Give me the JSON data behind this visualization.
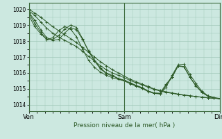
{
  "bg_color": "#cce8e0",
  "grid_color": "#a0c8b8",
  "line_color": "#2d5a27",
  "marker_color": "#2d5a27",
  "xlabel": "Pression niveau de la mer( hPa )",
  "yticks": [
    1014,
    1015,
    1016,
    1017,
    1018,
    1019,
    1020
  ],
  "xtick_labels": [
    "Ven",
    "Sam",
    "Dim"
  ],
  "xtick_positions": [
    0,
    48,
    96
  ],
  "ylim": [
    1013.6,
    1020.4
  ],
  "xlim": [
    0,
    96
  ],
  "series": [
    [
      0,
      1020.0,
      3,
      1019.75,
      6,
      1019.5,
      9,
      1019.2,
      12,
      1018.9,
      15,
      1018.65,
      18,
      1018.4,
      21,
      1018.15,
      24,
      1017.9,
      27,
      1017.6,
      30,
      1017.3,
      33,
      1017.0,
      36,
      1016.7,
      39,
      1016.45,
      42,
      1016.2,
      45,
      1016.0,
      48,
      1015.8,
      51,
      1015.6,
      54,
      1015.45,
      57,
      1015.3,
      60,
      1015.15,
      63,
      1015.0,
      66,
      1014.9,
      69,
      1014.82,
      72,
      1014.75,
      75,
      1014.68,
      78,
      1014.62,
      81,
      1014.57,
      84,
      1014.52,
      87,
      1014.48,
      90,
      1014.44,
      93,
      1014.41,
      96,
      1014.4
    ],
    [
      0,
      1019.9,
      3,
      1019.6,
      6,
      1019.2,
      9,
      1018.8,
      12,
      1018.5,
      15,
      1018.25,
      18,
      1018.05,
      21,
      1017.85,
      24,
      1017.65,
      27,
      1017.35,
      30,
      1017.05,
      33,
      1016.75,
      36,
      1016.45,
      39,
      1016.2,
      42,
      1016.0,
      45,
      1015.85,
      48,
      1015.7,
      51,
      1015.52,
      54,
      1015.38,
      57,
      1015.25,
      60,
      1015.1,
      63,
      1014.97,
      66,
      1014.86,
      69,
      1014.78,
      72,
      1014.72,
      75,
      1014.66,
      78,
      1014.61,
      81,
      1014.57,
      84,
      1014.52,
      87,
      1014.48,
      90,
      1014.44,
      93,
      1014.41,
      96,
      1014.38
    ],
    [
      0,
      1019.8,
      3,
      1019.3,
      6,
      1018.7,
      9,
      1018.2,
      12,
      1018.05,
      15,
      1018.1,
      18,
      1018.5,
      21,
      1018.85,
      24,
      1018.7,
      27,
      1018.1,
      30,
      1017.4,
      33,
      1016.8,
      36,
      1016.3,
      39,
      1016.0,
      42,
      1015.85,
      45,
      1015.65,
      48,
      1015.5,
      51,
      1015.35,
      54,
      1015.2,
      57,
      1015.05,
      60,
      1014.85,
      63,
      1014.72,
      66,
      1014.68,
      69,
      1015.1,
      72,
      1015.85,
      75,
      1016.5,
      78,
      1016.55,
      81,
      1015.9,
      84,
      1015.35,
      87,
      1014.85,
      90,
      1014.58,
      93,
      1014.46,
      96,
      1014.4
    ],
    [
      0,
      1019.75,
      3,
      1019.1,
      6,
      1018.55,
      9,
      1018.1,
      12,
      1018.1,
      15,
      1018.35,
      18,
      1018.75,
      21,
      1019.0,
      24,
      1018.85,
      27,
      1018.15,
      30,
      1017.35,
      33,
      1016.75,
      36,
      1016.25,
      39,
      1015.95,
      42,
      1015.8,
      45,
      1015.65,
      48,
      1015.55,
      51,
      1015.38,
      54,
      1015.22,
      57,
      1015.08,
      60,
      1014.87,
      63,
      1014.75,
      66,
      1014.73,
      69,
      1015.3,
      72,
      1015.75,
      75,
      1016.45,
      78,
      1016.4,
      81,
      1015.75,
      84,
      1015.2,
      87,
      1014.8,
      90,
      1014.55,
      93,
      1014.44,
      96,
      1014.38
    ],
    [
      0,
      1019.6,
      3,
      1018.9,
      6,
      1018.45,
      9,
      1018.1,
      12,
      1018.2,
      15,
      1018.65,
      18,
      1018.9,
      21,
      1018.75,
      24,
      1018.25,
      27,
      1017.5,
      30,
      1016.8,
      33,
      1016.35,
      36,
      1016.05,
      39,
      1015.85,
      42,
      1015.7,
      45,
      1015.6,
      48,
      1015.5,
      51,
      1015.32,
      54,
      1015.17,
      57,
      1015.02,
      60,
      1014.83,
      63,
      1014.72,
      66,
      1014.7,
      69,
      1015.22,
      72,
      1015.72,
      75,
      1016.42,
      78,
      1016.38,
      81,
      1015.72,
      84,
      1015.18,
      87,
      1014.78,
      90,
      1014.54,
      93,
      1014.43,
      96,
      1014.38
    ]
  ]
}
